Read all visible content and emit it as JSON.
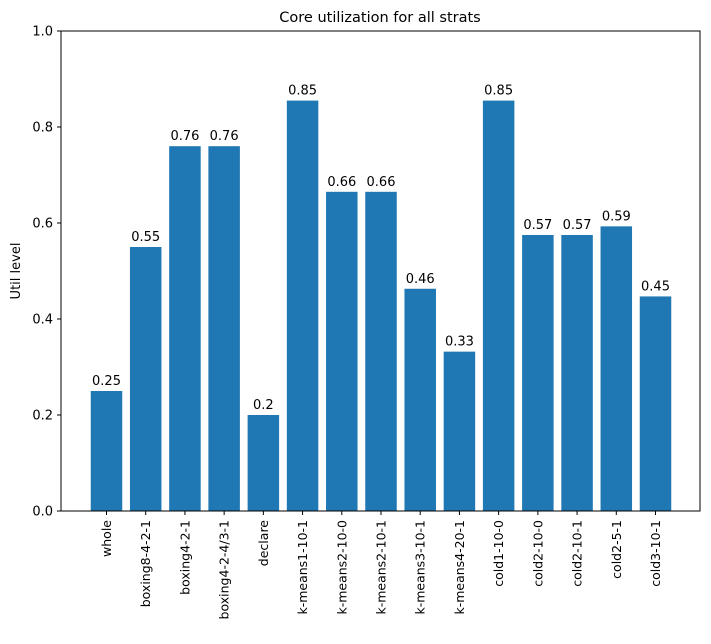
{
  "chart_data": {
    "type": "bar",
    "title": "Core utilization for all strats",
    "xlabel": "",
    "ylabel": "Util level",
    "ylim": [
      0,
      1.0
    ],
    "yticks": [
      "0.0",
      "0.2",
      "0.4",
      "0.6",
      "0.8",
      "1.0"
    ],
    "categories": [
      "whole",
      "boxing8-4-2-1",
      "boxing4-2-1",
      "boxing4-2-4/3-1",
      "declare",
      "k-means1-10-1",
      "k-means2-10-0",
      "k-means2-10-1",
      "k-means3-10-1",
      "k-means4-20-1",
      "cold1-10-0",
      "cold2-10-0",
      "cold2-10-1",
      "cold2-5-1",
      "cold3-10-1"
    ],
    "values": [
      0.25,
      0.55,
      0.76,
      0.76,
      0.2,
      0.855,
      0.665,
      0.665,
      0.463,
      0.332,
      0.855,
      0.575,
      0.575,
      0.593,
      0.447
    ],
    "data_labels": [
      "0.25",
      "0.55",
      "0.76",
      "0.76",
      "0.2",
      "0.85",
      "0.66",
      "0.66",
      "0.46",
      "0.33",
      "0.85",
      "0.57",
      "0.57",
      "0.59",
      "0.45"
    ],
    "bar_color": "#1f77b4",
    "grid": false,
    "legend": "none"
  }
}
